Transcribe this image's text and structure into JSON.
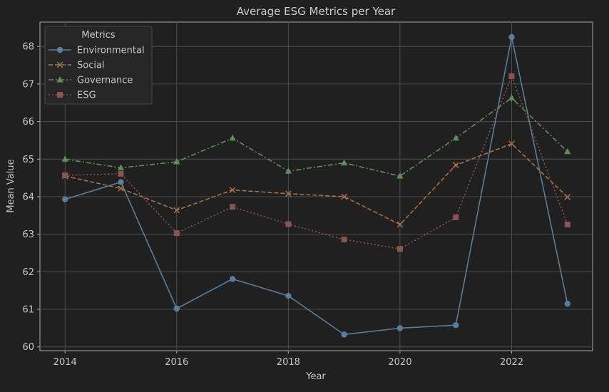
{
  "chart_data": {
    "type": "line",
    "title": "Average ESG Metrics per Year",
    "xlabel": "Year",
    "ylabel": "Mean Value",
    "x": [
      2014,
      2015,
      2016,
      2017,
      2018,
      2019,
      2020,
      2021,
      2022,
      2023
    ],
    "xlim": [
      2013.55,
      2023.45
    ],
    "ylim": [
      59.9,
      68.65
    ],
    "xticks": [
      2014,
      2016,
      2018,
      2020,
      2022
    ],
    "yticks": [
      60,
      61,
      62,
      63,
      64,
      65,
      66,
      67,
      68
    ],
    "grid": true,
    "legend": {
      "title": "Metrics",
      "placement": "top-left"
    },
    "series": [
      {
        "name": "Environmental",
        "color": "#5a7d9a",
        "dash": "solid",
        "marker": "circle",
        "values": [
          63.93,
          64.39,
          61.02,
          61.81,
          61.36,
          60.33,
          60.5,
          60.58,
          68.25,
          61.15
        ]
      },
      {
        "name": "Social",
        "color": "#a5714a",
        "dash": "dashed",
        "marker": "x",
        "values": [
          64.55,
          64.22,
          63.64,
          64.18,
          64.08,
          64.0,
          63.26,
          64.84,
          65.41,
          63.99
        ]
      },
      {
        "name": "Governance",
        "color": "#5e8f5a",
        "dash": "dashdot",
        "marker": "triangle",
        "values": [
          65.0,
          64.77,
          64.93,
          65.56,
          64.68,
          64.9,
          64.55,
          65.56,
          66.63,
          65.2
        ]
      },
      {
        "name": "ESG",
        "color": "#8c5353",
        "dash": "dotted",
        "marker": "square",
        "values": [
          64.57,
          64.61,
          63.03,
          63.73,
          63.27,
          62.86,
          62.61,
          63.45,
          67.21,
          63.26
        ]
      }
    ]
  }
}
